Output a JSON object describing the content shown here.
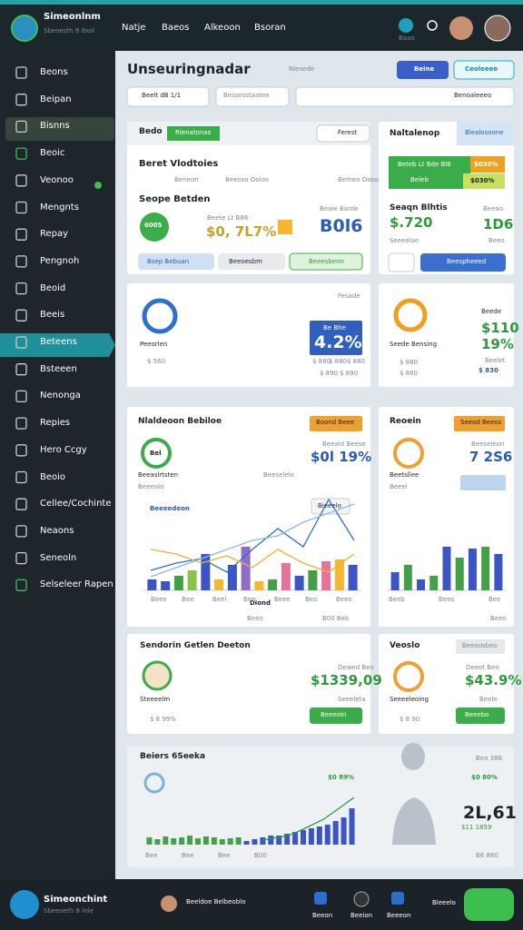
{
  "header": {
    "app_name": "Simeonlnm",
    "app_subtitle": "Sbeoesth 8 Iboli",
    "nav": [
      "Natje",
      "Baeos",
      "Alkeoon",
      "Bsoran"
    ],
    "icon_label": "Baao"
  },
  "sidebar": {
    "items": [
      "Beons",
      "Beipan",
      "Bisnns",
      "Beoic",
      "Veonoo",
      "Mengnts",
      "Repay",
      "Pengnoh",
      "Beoid",
      "Beeis",
      "Beteens",
      "Bsteeen",
      "Nenonga",
      "Repies",
      "Hero Ccgy",
      "Beoio",
      "Cellee/Cochinte",
      "Neaons",
      "Seneoln",
      "Selseleer Rapen"
    ]
  },
  "main": {
    "title": "Unseuringnadar",
    "subtitle": "Nlesede",
    "buttons": [
      "Beine",
      "Ceoleeee"
    ],
    "filters": [
      "Beelt dB 1/1",
      "Bessesstaatee",
      "Benoaleeeo"
    ]
  },
  "overview": {
    "tabs": [
      "Bedo",
      "Rlenatonas"
    ],
    "action": "Ferest",
    "title": "Beret Vlodtoies",
    "legend": [
      "Beneon",
      "Beeoso Ooloo",
      "Bemeo Oooo"
    ],
    "subheading": "Seope Betden",
    "ring_label": "6005",
    "stat_label": "Beete Lt B86",
    "stat_value": "$0, 7L7%",
    "stat2_label": "Beale Barde",
    "stat2_value": "B0l6",
    "buttons": [
      "Bsep Bebuan",
      "Beeoesbm",
      "Beeesbenn"
    ]
  },
  "summary": {
    "title": "Naltalenop",
    "tab": "Blealosoone",
    "banner": "Beteb Lt Bde Bl6",
    "banner_sub": "Beleb",
    "badges": [
      "$030%",
      "$030%"
    ],
    "heading": "Seaqn Blhtis",
    "label": "Beeao",
    "value": "$.720",
    "value2": "1D6",
    "note": "Seeeelae",
    "note2": "Beeo",
    "button": "Beespheeed"
  },
  "progress": {
    "label": "Fesade",
    "caption": "Peeorlen",
    "badge_label": "Be Bhe",
    "badge_value": "4.2%",
    "left_stat": "$ 560",
    "stats": [
      "$ 880",
      "$ 880",
      "$ 880"
    ],
    "stats2": [
      "$ 890",
      "$ 890"
    ]
  },
  "progress_side": {
    "label": "Beede",
    "value": "$110",
    "caption": "Seede Bensing",
    "value2": "19%",
    "note": "Beelet",
    "stats": [
      "$ 880",
      "$ 880"
    ],
    "badge": "$ 830"
  },
  "trend": {
    "title": "Nlaldeoon Bebiloe",
    "tag": "Boond Beee",
    "stat_label": "Beeald Beese",
    "stat_value": "$0l 19%",
    "note": "Beeselelo",
    "ring_label": "Bel",
    "caption": "Beeaslrtsten",
    "caption_sub": "Beeeolo",
    "series_label": "Beeeedeon",
    "tooltip": "Bieeelo",
    "x_labels": [
      "Beee",
      "Bee",
      "Beel",
      "Bee",
      "Beee",
      "Beo",
      "Beeo"
    ],
    "axis_title": "Diond",
    "footer": [
      "Beeo",
      "B00 Beb"
    ],
    "chart": {
      "ylim": [
        0,
        100
      ],
      "values": [
        12,
        10,
        16,
        22,
        40,
        12,
        28,
        48,
        10,
        12,
        30,
        16,
        22,
        32,
        34,
        28
      ],
      "colors": [
        "#3b55c4",
        "#3b55c4",
        "#43a047",
        "#8bc34a",
        "#3b55c4",
        "#f5b731",
        "#3b55c4",
        "#8e6cc8",
        "#f5b731",
        "#43a047",
        "#e57399",
        "#3b55c4",
        "#43a047",
        "#e57399",
        "#f5b731",
        "#3b55c4"
      ],
      "lines": [
        {
          "color": "#2a6fd0",
          "values": [
            22,
            30,
            35,
            20,
            45,
            68,
            48,
            100,
            55
          ]
        },
        {
          "color": "#f0b030",
          "values": [
            45,
            40,
            30,
            38,
            25,
            45,
            30,
            20,
            40
          ]
        },
        {
          "color": "#8ab8e6",
          "values": [
            15,
            25,
            35,
            45,
            55,
            60,
            75,
            85,
            95
          ]
        }
      ]
    }
  },
  "trend_side": {
    "title": "Reoein",
    "tag": "Seeod Beeos",
    "stat_label": "Beeseleon",
    "stat_value": "7 2S6",
    "caption": "Beetsllee",
    "caption_sub": "Beeel",
    "x_labels": [
      "Beeb",
      "Beeo",
      "Bee"
    ],
    "footer": "Beeo",
    "chart": {
      "ylim": [
        0,
        80
      ],
      "values": [
        20,
        28,
        12,
        16,
        48,
        36,
        46,
        48,
        40
      ],
      "colors": [
        "#3b55c4",
        "#43a047",
        "#3b55c4",
        "#43a047",
        "#3b55c4",
        "#43a047",
        "#3b55c4",
        "#43a047",
        "#3b55c4"
      ]
    }
  },
  "profile": {
    "title": "Sendorin Getlen Deeton",
    "label": "Dewed Beo",
    "value": "$1339,09",
    "note": "Seeeleta",
    "caption": "Steeeelm",
    "stat": "$ 8 99%",
    "button": "Beeeoln"
  },
  "profile_side": {
    "title": "Veoslo",
    "tag": "Beeoosbeo",
    "label": "Deeot Beo",
    "value": "$43.9%",
    "caption": "Seeeeleoing",
    "note": "Beele",
    "stat": "$ 8 90",
    "button": "Beeebo"
  },
  "volume": {
    "title": "Beiers 6Seeka",
    "stat": "$0 89%",
    "side_label": "Beo 388",
    "side_stat": "$0 80%",
    "side_value": "2L,61",
    "side_note": "$11 1859",
    "side_footer": "B6 880",
    "x_labels": [
      "Bee",
      "Bee",
      "Bee",
      "B00"
    ],
    "chart": {
      "ylim": [
        0,
        60
      ],
      "values": [
        8,
        6,
        9,
        7,
        8,
        10,
        7,
        9,
        8,
        6,
        7,
        8,
        4,
        6,
        8,
        10,
        10,
        12,
        14,
        16,
        18,
        20,
        22,
        26,
        30,
        40
      ],
      "colors": [
        "#43a047",
        "#43a047",
        "#43a047",
        "#43a047",
        "#43a047",
        "#43a047",
        "#43a047",
        "#43a047",
        "#43a047",
        "#43a047",
        "#43a047",
        "#43a047",
        "#3b55c4",
        "#3b55c4",
        "#3b55c4",
        "#3b55c4",
        "#3b55c4",
        "#3b55c4",
        "#3b55c4",
        "#3b55c4",
        "#3b55c4",
        "#3b55c4",
        "#3b55c4",
        "#3b55c4",
        "#3b55c4",
        "#3b55c4"
      ],
      "trend": {
        "color": "#2e9a3c",
        "values": [
          5,
          8,
          12,
          20,
          28,
          40,
          52
        ]
      }
    }
  },
  "footer": {
    "app_name": "Simeonchint",
    "app_subtitle": "Sbeeoeth 8 Inle",
    "user": "Beeldoe Belbeoblo",
    "icons": [
      "Beeon",
      "Beeion",
      "Beeeon",
      "Bleeelo"
    ]
  }
}
